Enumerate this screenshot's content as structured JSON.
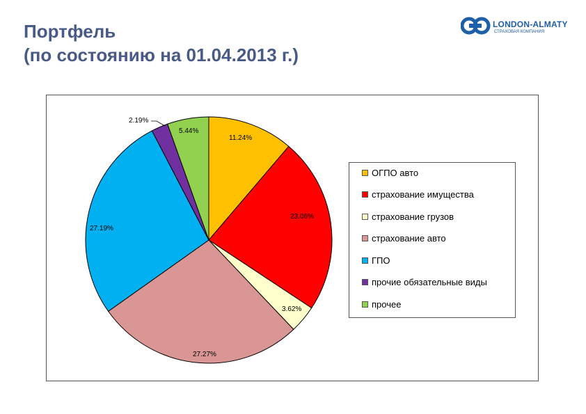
{
  "header": {
    "title_line1": "Портфель",
    "title_line2": "(по состоянию на 01.04.2013 г.)"
  },
  "logo": {
    "name": "LONDON-ALMATY",
    "subtitle": "СТРАХОВАЯ КОМПАНИЯ",
    "icon": "logo-icon"
  },
  "chart_data": {
    "type": "pie",
    "title": "",
    "legend_position": "right",
    "series": [
      {
        "name": "ОГПО авто",
        "value": 11.24,
        "label": "11.24%",
        "color": "#ffc000"
      },
      {
        "name": "страхование имущества",
        "value": 23.06,
        "label": "23.06%",
        "color": "#ff0000"
      },
      {
        "name": "страхование грузов",
        "value": 3.62,
        "label": "3.62%",
        "color": "#ffffcc"
      },
      {
        "name": "страхование авто",
        "value": 27.27,
        "label": "27.27%",
        "color": "#d99694"
      },
      {
        "name": "ГПО",
        "value": 27.19,
        "label": "27.19%",
        "color": "#00b0f0"
      },
      {
        "name": "прочие обязательные виды",
        "value": 2.19,
        "label": "2.19%",
        "color": "#7030a0"
      },
      {
        "name": "прочее",
        "value": 5.44,
        "label": "5.44%",
        "color": "#92d050"
      }
    ]
  }
}
